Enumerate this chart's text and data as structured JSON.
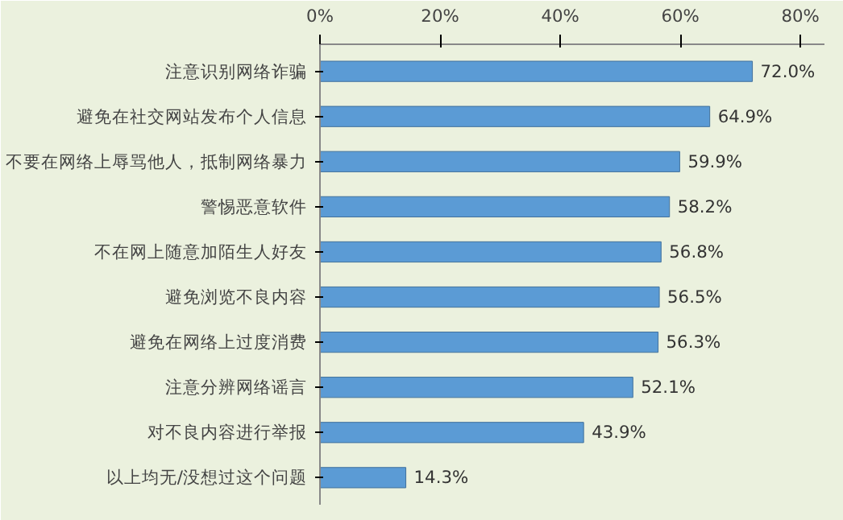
{
  "chart_data": {
    "type": "bar",
    "orientation": "horizontal",
    "categories": [
      "注意识别网络诈骗",
      "避免在社交网站发布个人信息",
      "不要在网络上辱骂他人，抵制网络暴力",
      "警惕恶意软件",
      "不在网上随意加陌生人好友",
      "避免浏览不良内容",
      "避免在网络上过度消费",
      "注意分辨网络谣言",
      "对不良内容进行举报",
      "以上均无/没想过这个问题"
    ],
    "values": [
      72.0,
      64.9,
      59.9,
      58.2,
      56.8,
      56.5,
      56.3,
      52.1,
      43.9,
      14.3
    ],
    "value_labels": [
      "72.0%",
      "64.9%",
      "59.9%",
      "58.2%",
      "56.8%",
      "56.5%",
      "56.3%",
      "52.1%",
      "43.9%",
      "14.3%"
    ],
    "color": "#5b9bd5",
    "xlim": [
      0,
      84
    ],
    "xticks": [
      {
        "value": 0,
        "label": "0%"
      },
      {
        "value": 20,
        "label": "20%"
      },
      {
        "value": 40,
        "label": "40%"
      },
      {
        "value": 60,
        "label": "60%"
      },
      {
        "value": 80,
        "label": "80%"
      }
    ],
    "grid": false
  }
}
